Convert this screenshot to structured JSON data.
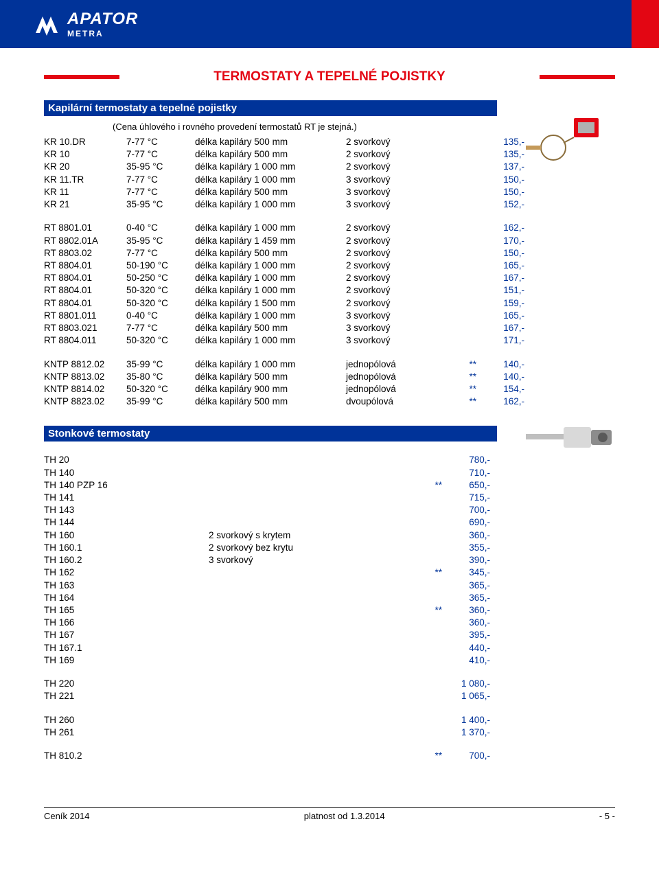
{
  "brand": {
    "name": "APATOR",
    "sub": "METRA"
  },
  "title": "TERMOSTATY A TEPELNÉ POJISTKY",
  "section1": {
    "header": "Kapilární termostaty a tepelné pojistky",
    "note": "(Cena úhlového i rovného provedení termostatů RT je stejná.)"
  },
  "kr_rows": [
    {
      "model": "KR 10.DR",
      "temp": "7-77 °C",
      "len": "délka kapiláry   500 mm",
      "type": "2 svorkový",
      "star": "",
      "price": "135,-"
    },
    {
      "model": "KR 10",
      "temp": "7-77 °C",
      "len": "délka kapiláry   500 mm",
      "type": "2 svorkový",
      "star": "",
      "price": "135,-"
    },
    {
      "model": "KR 20",
      "temp": "35-95 °C",
      "len": "délka kapiláry 1 000 mm",
      "type": "2 svorkový",
      "star": "",
      "price": "137,-"
    },
    {
      "model": "KR 11.TR",
      "temp": "7-77 °C",
      "len": "délka kapiláry 1 000 mm",
      "type": "3 svorkový",
      "star": "",
      "price": "150,-"
    },
    {
      "model": "KR 11",
      "temp": "7-77 °C",
      "len": "délka kapiláry   500 mm",
      "type": "3 svorkový",
      "star": "",
      "price": "150,-"
    },
    {
      "model": "KR 21",
      "temp": "35-95 °C",
      "len": "délka kapiláry 1 000 mm",
      "type": "3 svorkový",
      "star": "",
      "price": "152,-"
    }
  ],
  "rt_rows": [
    {
      "model": "RT 8801.01",
      "temp": "0-40 °C",
      "len": "délka kapiláry 1 000 mm",
      "type": "2 svorkový",
      "star": "",
      "price": "162,-"
    },
    {
      "model": "RT 8802.01A",
      "temp": "35-95 °C",
      "len": "délka kapiláry 1 459 mm",
      "type": "2 svorkový",
      "star": "",
      "price": "170,-"
    },
    {
      "model": "RT 8803.02",
      "temp": "7-77 °C",
      "len": "délka kapiláry   500 mm",
      "type": "2 svorkový",
      "star": "",
      "price": "150,-"
    },
    {
      "model": "RT 8804.01",
      "temp": "50-190 °C",
      "len": "délka kapiláry 1 000 mm",
      "type": "2 svorkový",
      "star": "",
      "price": "165,-"
    },
    {
      "model": "RT 8804.01",
      "temp": "50-250 °C",
      "len": "délka kapiláry 1 000 mm",
      "type": "2 svorkový",
      "star": "",
      "price": "167,-"
    },
    {
      "model": "RT 8804.01",
      "temp": "50-320 °C",
      "len": "délka kapiláry 1 000 mm",
      "type": "2 svorkový",
      "star": "",
      "price": "151,-"
    },
    {
      "model": "RT 8804.01",
      "temp": "50-320 °C",
      "len": "délka kapiláry 1 500 mm",
      "type": "2 svorkový",
      "star": "",
      "price": "159,-"
    },
    {
      "model": "RT 8801.011",
      "temp": "0-40 °C",
      "len": "délka kapiláry 1 000 mm",
      "type": "3 svorkový",
      "star": "",
      "price": "165,-"
    },
    {
      "model": "RT 8803.021",
      "temp": "7-77 °C",
      "len": "délka kapiláry   500 mm",
      "type": "3 svorkový",
      "star": "",
      "price": "167,-"
    },
    {
      "model": "RT 8804.011",
      "temp": "50-320 °C",
      "len": "délka kapiláry 1 000 mm",
      "type": "3 svorkový",
      "star": "",
      "price": "171,-"
    }
  ],
  "kntp_rows": [
    {
      "model": "KNTP 8812.02",
      "temp": "35-99 °C",
      "len": "délka kapiláry 1 000 mm",
      "type": "jednopólová",
      "star": "**",
      "price": "140,-"
    },
    {
      "model": "KNTP 8813.02",
      "temp": "35-80 °C",
      "len": "délka kapiláry   500 mm",
      "type": "jednopólová",
      "star": "**",
      "price": "140,-"
    },
    {
      "model": "KNTP 8814.02",
      "temp": "50-320 °C",
      "len": "délka kapiláry   900 mm",
      "type": "jednopólová",
      "star": "**",
      "price": "154,-"
    },
    {
      "model": "KNTP 8823.02",
      "temp": "35-99 °C",
      "len": "délka kapiláry   500 mm",
      "type": "dvoupólová",
      "star": "**",
      "price": "162,-"
    }
  ],
  "section2": {
    "header": "Stonkové termostaty"
  },
  "th_block1": [
    {
      "model": "TH 20",
      "desc": "",
      "star": "",
      "price": "780,-"
    },
    {
      "model": "TH 140",
      "desc": "",
      "star": "",
      "price": "710,-"
    },
    {
      "model": "TH 140 PZP 16",
      "desc": "",
      "star": "**",
      "price": "650,-"
    },
    {
      "model": "TH 141",
      "desc": "",
      "star": "",
      "price": "715,-"
    },
    {
      "model": "TH 143",
      "desc": "",
      "star": "",
      "price": "700,-"
    },
    {
      "model": "TH 144",
      "desc": "",
      "star": "",
      "price": "690,-"
    },
    {
      "model": "TH 160",
      "desc": "2 svorkový s krytem",
      "star": "",
      "price": "360,-"
    },
    {
      "model": "TH 160.1",
      "desc": "2 svorkový bez krytu",
      "star": "",
      "price": "355,-"
    },
    {
      "model": "TH 160.2",
      "desc": "3 svorkový",
      "star": "",
      "price": "390,-"
    },
    {
      "model": "TH 162",
      "desc": "",
      "star": "**",
      "price": "345,-"
    },
    {
      "model": "TH 163",
      "desc": "",
      "star": "",
      "price": "365,-"
    },
    {
      "model": "TH 164",
      "desc": "",
      "star": "",
      "price": "365,-"
    },
    {
      "model": "TH 165",
      "desc": "",
      "star": "**",
      "price": "360,-"
    },
    {
      "model": "TH 166",
      "desc": "",
      "star": "",
      "price": "360,-"
    },
    {
      "model": "TH 167",
      "desc": "",
      "star": "",
      "price": "395,-"
    },
    {
      "model": "TH 167.1",
      "desc": "",
      "star": "",
      "price": "440,-"
    },
    {
      "model": "TH 169",
      "desc": "",
      "star": "",
      "price": "410,-"
    }
  ],
  "th_block2": [
    {
      "model": "TH 220",
      "desc": "",
      "star": "",
      "price": "1 080,-"
    },
    {
      "model": "TH 221",
      "desc": "",
      "star": "",
      "price": "1 065,-"
    }
  ],
  "th_block3": [
    {
      "model": "TH 260",
      "desc": "",
      "star": "",
      "price": "1 400,-"
    },
    {
      "model": "TH 261",
      "desc": "",
      "star": "",
      "price": "1 370,-"
    }
  ],
  "th_block4": [
    {
      "model": "TH 810.2",
      "desc": "",
      "star": "**",
      "price": "700,-"
    }
  ],
  "footer": {
    "left": "Ceník 2014",
    "mid": "platnost od 1.3.2014",
    "right": "- 5 -"
  },
  "colors": {
    "blue": "#003399",
    "red": "#e30613"
  }
}
